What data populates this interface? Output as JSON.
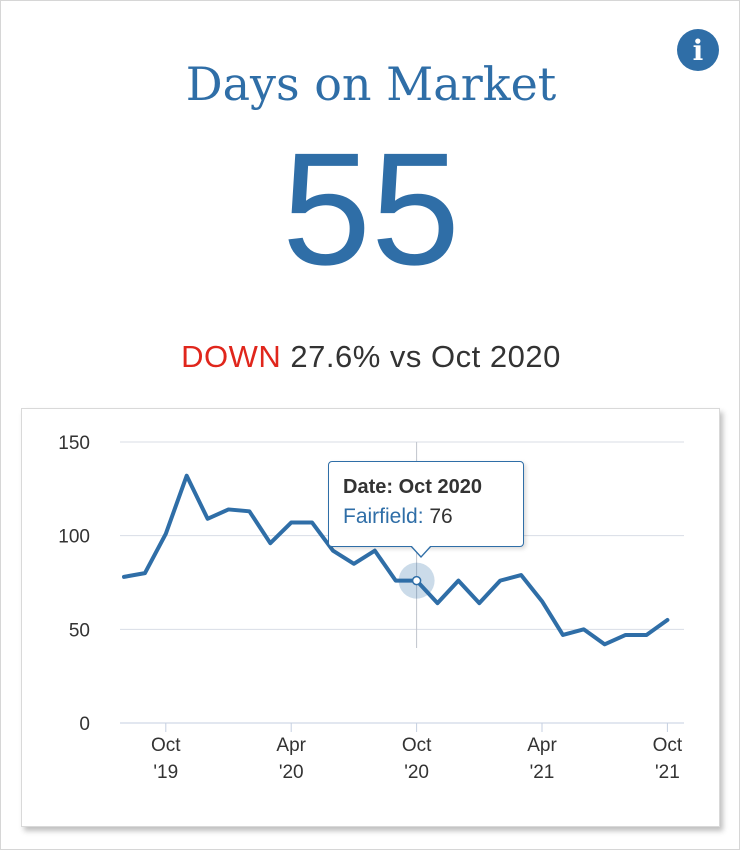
{
  "card": {
    "title": "Days on Market",
    "value": "55",
    "change_direction": "DOWN",
    "change_text": "27.6% vs Oct 2020",
    "info_icon": "info-icon"
  },
  "tooltip": {
    "date_label": "Date: Oct 2020",
    "series_label": "Fairfield:",
    "series_value": "76"
  },
  "colors": {
    "accent": "#2f6ea7",
    "down": "#e0261c",
    "line": "#2f6ea7",
    "grid": "#d8dde6"
  },
  "chart_data": {
    "type": "line",
    "title": "",
    "xlabel": "",
    "ylabel": "",
    "ylim": [
      0,
      150
    ],
    "yticks": [
      0,
      50,
      100,
      150
    ],
    "x_tick_labels": [
      {
        "index": 2,
        "month": "Oct",
        "year": "'19"
      },
      {
        "index": 8,
        "month": "Apr",
        "year": "'20"
      },
      {
        "index": 14,
        "month": "Oct",
        "year": "'20"
      },
      {
        "index": 20,
        "month": "Apr",
        "year": "'21"
      },
      {
        "index": 26,
        "month": "Oct",
        "year": "'21"
      }
    ],
    "series": [
      {
        "name": "Fairfield",
        "values": [
          78,
          80,
          101,
          132,
          109,
          114,
          113,
          96,
          107,
          107,
          92,
          85,
          92,
          76,
          76,
          64,
          76,
          64,
          76,
          79,
          65,
          47,
          50,
          42,
          47,
          47,
          55
        ]
      }
    ],
    "highlight_index": 14
  }
}
